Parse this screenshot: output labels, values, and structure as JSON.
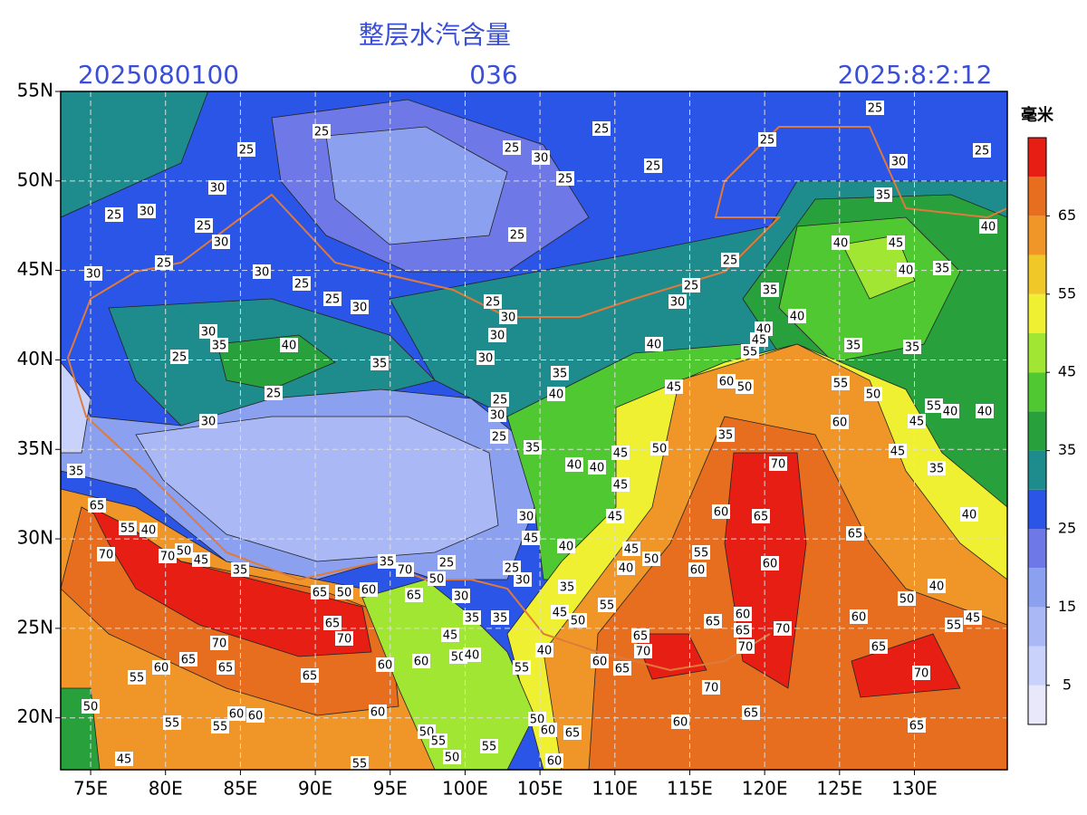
{
  "header": {
    "title": "整层水汽含量",
    "init_time": "2025080100",
    "forecast_hour": "036",
    "valid_time": "2025:8:2:12"
  },
  "map": {
    "xlim": [
      73,
      136.2
    ],
    "ylim": [
      17.1,
      55
    ],
    "xticks": [
      {
        "value": 75,
        "label": "75E"
      },
      {
        "value": 80,
        "label": "80E"
      },
      {
        "value": 85,
        "label": "85E"
      },
      {
        "value": 90,
        "label": "90E"
      },
      {
        "value": 95,
        "label": "95E"
      },
      {
        "value": 100,
        "label": "100E"
      },
      {
        "value": 105,
        "label": "105E"
      },
      {
        "value": 110,
        "label": "110E"
      },
      {
        "value": 115,
        "label": "115E"
      },
      {
        "value": 120,
        "label": "120E"
      },
      {
        "value": 125,
        "label": "125E"
      },
      {
        "value": 130,
        "label": "130E"
      }
    ],
    "yticks": [
      {
        "value": 20,
        "label": "20N"
      },
      {
        "value": 25,
        "label": "25N"
      },
      {
        "value": 30,
        "label": "30N"
      },
      {
        "value": 35,
        "label": "35N"
      },
      {
        "value": 40,
        "label": "40N"
      },
      {
        "value": 45,
        "label": "45N"
      },
      {
        "value": 50,
        "label": "50N"
      },
      {
        "value": 55,
        "label": "55N"
      }
    ],
    "grid": true,
    "contour_labels": [
      25,
      25,
      30,
      25,
      30,
      25,
      30,
      30,
      25,
      30,
      25,
      25,
      30,
      25,
      25,
      30,
      25,
      25,
      25,
      25,
      25,
      30,
      25,
      35,
      40,
      45,
      40,
      35,
      40,
      25,
      25,
      30,
      35,
      40,
      40,
      40,
      25,
      30,
      30,
      30,
      35,
      40,
      35,
      30,
      25,
      25,
      30,
      35,
      65,
      55,
      40,
      70,
      70,
      50,
      45,
      35,
      65,
      50,
      65,
      70,
      60,
      35,
      70,
      25,
      50,
      30,
      65,
      35,
      35,
      45,
      50,
      35,
      40,
      25,
      30,
      25,
      35,
      40,
      40,
      45,
      45,
      50,
      35,
      60,
      50,
      55,
      45,
      45,
      55,
      50,
      60,
      70,
      45,
      35,
      40,
      45,
      40,
      40,
      55,
      35,
      35,
      65,
      60,
      65,
      30,
      45,
      40,
      45,
      45,
      50,
      40,
      55,
      60,
      60,
      35,
      45,
      50,
      55,
      65,
      70,
      65,
      60,
      65,
      70,
      70,
      60,
      65,
      70,
      50,
      40,
      55,
      45,
      60,
      65,
      40,
      55,
      60,
      60,
      65,
      70,
      65,
      65,
      60,
      55,
      55,
      55,
      60,
      60,
      60,
      50,
      45,
      55,
      50,
      55,
      50,
      55,
      50,
      60,
      65,
      60,
      60,
      65,
      65,
      70,
      30,
      40,
      25
    ]
  },
  "colorbar": {
    "unit": "毫米",
    "range": [
      0,
      75
    ],
    "ticks": [
      5,
      15,
      25,
      35,
      45,
      55,
      65
    ],
    "colors": [
      "#e8e8fa",
      "#c8d2fa",
      "#aab9f5",
      "#8ca0f0",
      "#6e78e6",
      "#2a55e6",
      "#1e8c8c",
      "#28a03c",
      "#50c832",
      "#a0e632",
      "#f0f032",
      "#f0c828",
      "#f09628",
      "#e66e1e",
      "#e61e14"
    ]
  }
}
